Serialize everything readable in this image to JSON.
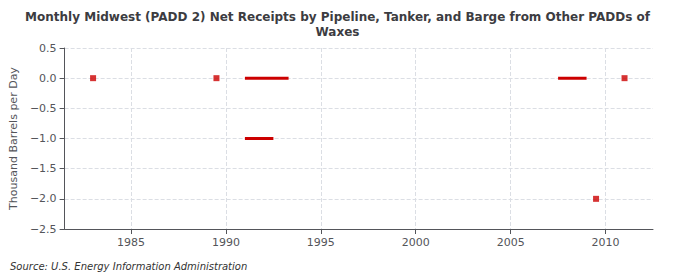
{
  "chart_data": {
    "type": "line",
    "title": "Monthly Midwest (PADD 2) Net Receipts by Pipeline, Tanker, and Barge from Other PADDs of\nWaxes",
    "ylabel": "Thousand Barrels per Day",
    "annotation": "Source: U.S. Energy Information Administration",
    "xlim": [
      1981.5,
      2012.5
    ],
    "ylim": [
      -2.5,
      0.5
    ],
    "xticks": [
      1985,
      1990,
      1995,
      2000,
      2005,
      2010
    ],
    "yticks": [
      0.5,
      {
        "value": 0.0,
        "label": "0.0"
      },
      {
        "value": -0.5,
        "label": "−0.5"
      },
      {
        "value": -1.0,
        "label": "−1.0"
      },
      {
        "value": -1.5,
        "label": "−1.5"
      },
      {
        "value": -2.0,
        "label": "−2.0"
      },
      {
        "value": -2.5,
        "label": "−2.5"
      }
    ],
    "grid": true,
    "series": [
      {
        "type": "line",
        "color": "#cc0000",
        "x": [
          1991.0,
          1993.3
        ],
        "values": [
          0.0,
          0.0
        ]
      },
      {
        "type": "line",
        "color": "#cc0000",
        "x": [
          1991.0,
          1992.5
        ],
        "values": [
          -1.0,
          -1.0
        ]
      },
      {
        "type": "line",
        "color": "#cc0000",
        "x": [
          2007.5,
          2009.0
        ],
        "values": [
          0.0,
          0.0
        ]
      },
      {
        "type": "scatter",
        "color": "#cc0000",
        "marker": "square",
        "x": [
          1983.0,
          1989.5,
          2009.5,
          2011.0
        ],
        "values": [
          0.0,
          0.0,
          -2.0,
          0.0
        ]
      }
    ]
  }
}
